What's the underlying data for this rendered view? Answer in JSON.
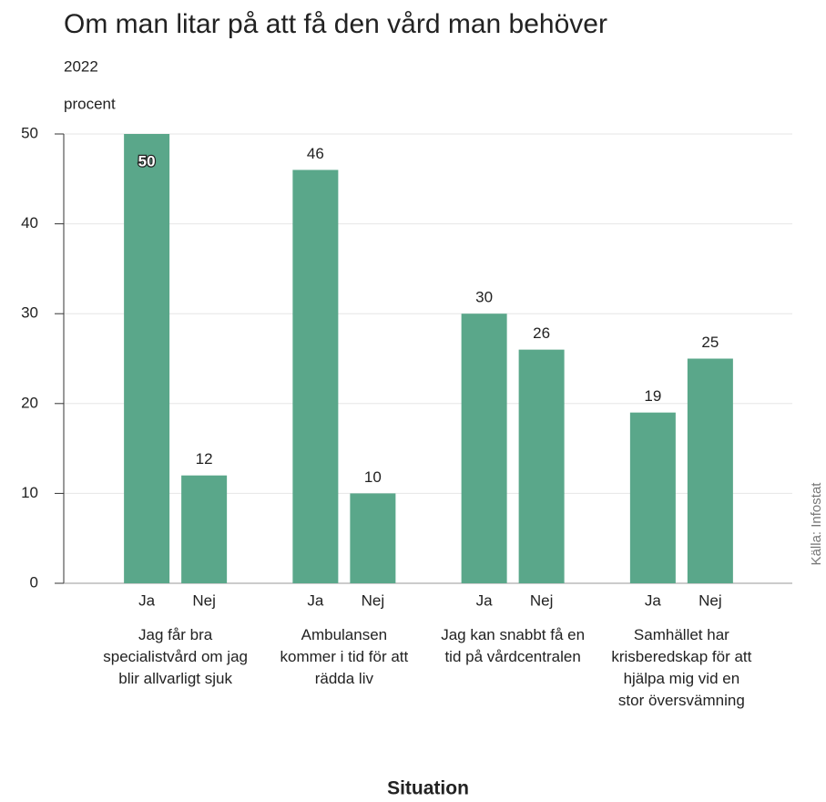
{
  "chart_data": {
    "type": "grouped_bar",
    "title": "Om man litar på att få den vård man behöver",
    "subtitle": "2022",
    "y_label": "procent",
    "x_label": "Situation",
    "source": "Källa: Infostat",
    "color": "#5aa78a",
    "grid": true,
    "ylim": [
      0,
      50
    ],
    "yticks": [
      0,
      10,
      20,
      30,
      40,
      50
    ],
    "groups": [
      {
        "label": "Jag får bra specialistvård om jag blir allvarligt sjuk",
        "categories": [
          "Ja",
          "Nej"
        ],
        "values": [
          50,
          12
        ]
      },
      {
        "label": "Ambulansen kommer i tid för att rädda liv",
        "categories": [
          "Ja",
          "Nej"
        ],
        "values": [
          46,
          10
        ]
      },
      {
        "label": "Jag kan snabbt få en tid på vårdcentralen",
        "categories": [
          "Ja",
          "Nej"
        ],
        "values": [
          30,
          26
        ]
      },
      {
        "label": "Samhället har krisberedskap för att hjälpa mig vid en stor översvämning",
        "categories": [
          "Ja",
          "Nej"
        ],
        "values": [
          19,
          25
        ]
      }
    ]
  }
}
